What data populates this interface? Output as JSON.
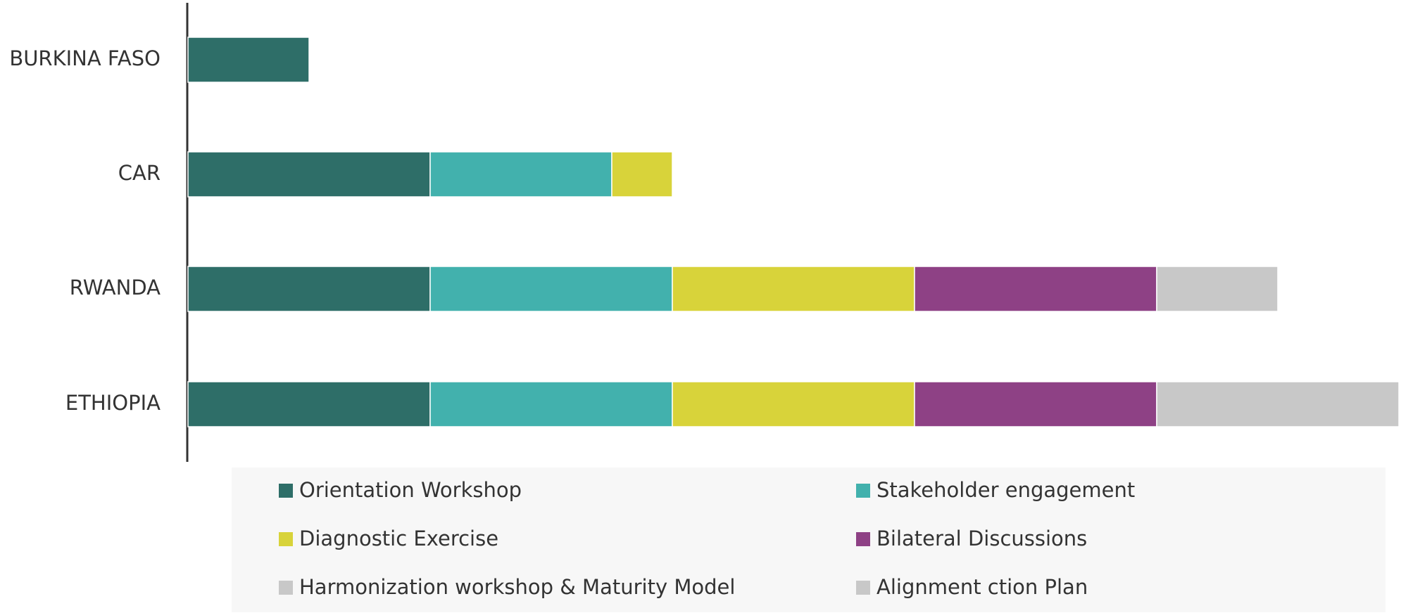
{
  "chart_data": {
    "type": "stacked_bar_horizontal",
    "categories": [
      "BURKINA FASO",
      "CAR",
      "RWANDA",
      "ETHIOPIA"
    ],
    "series": [
      {
        "name": "Orientation Workshop",
        "color": "#2e6e68",
        "values": [
          0.5,
          1,
          1,
          1
        ]
      },
      {
        "name": "Stakeholder engagement",
        "color": "#42b1ad",
        "values": [
          null,
          0.75,
          1,
          1
        ]
      },
      {
        "name": "Diagnostic Exercise",
        "color": "#d8d33a",
        "values": [
          null,
          0.25,
          1,
          1
        ]
      },
      {
        "name": "Bilateral Discussions",
        "color": "#8e4185",
        "values": [
          null,
          null,
          1,
          1
        ]
      },
      {
        "name": "Harmonization workshop & Maturity Model",
        "color": "#c8c8c8",
        "values": [
          null,
          null,
          0.5,
          1
        ]
      },
      {
        "name": "Alignment ction Plan",
        "color": "#c8c8c8",
        "values": [
          null,
          null,
          null,
          null
        ]
      }
    ],
    "xlim": [
      0,
      5
    ]
  }
}
